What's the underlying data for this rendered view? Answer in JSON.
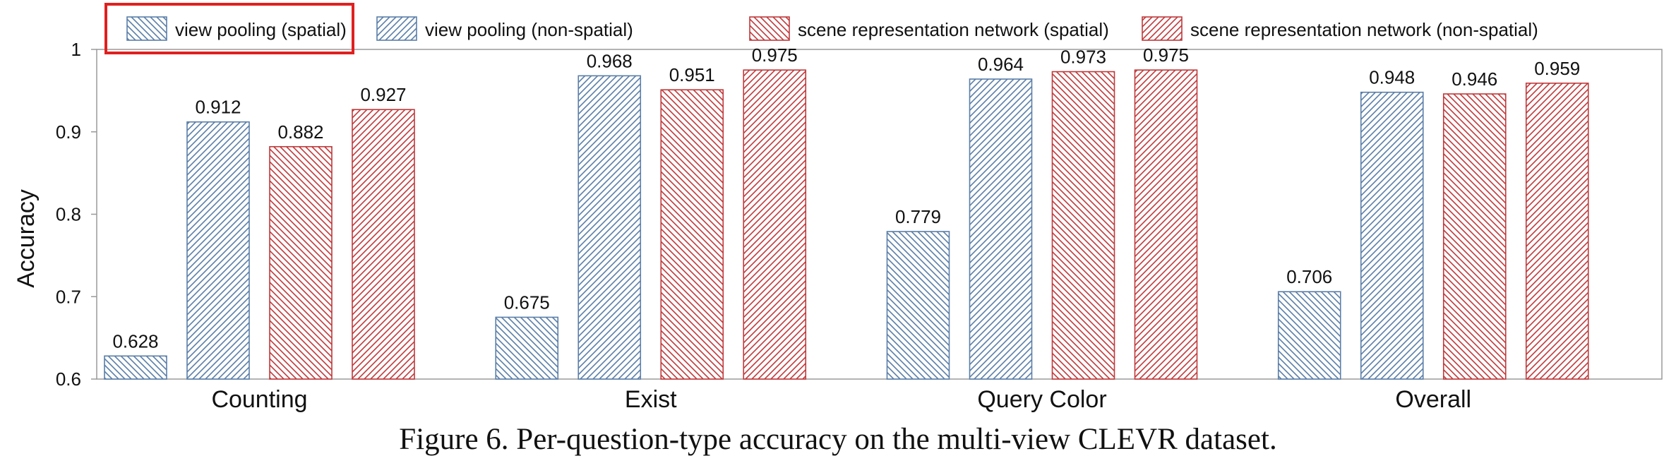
{
  "chart_data": {
    "type": "bar",
    "title": "",
    "xlabel": "",
    "ylabel": "Accuracy",
    "ylim": [
      0.6,
      1.0
    ],
    "yticks": [
      0.6,
      0.7,
      0.8,
      0.9,
      1.0
    ],
    "ytick_labels": [
      "0.6",
      "0.7",
      "0.8",
      "0.9",
      "1"
    ],
    "grid": false,
    "legend_position": "top",
    "categories": [
      "Counting",
      "Exist",
      "Query Color",
      "Overall"
    ],
    "series": [
      {
        "name": "view pooling (spatial)",
        "color": "#5a7ea8",
        "hatch": "backslash",
        "values": [
          0.628,
          0.675,
          0.779,
          0.706
        ]
      },
      {
        "name": "view pooling (non-spatial)",
        "color": "#5a7ea8",
        "hatch": "slash",
        "values": [
          0.912,
          0.968,
          0.964,
          0.948
        ]
      },
      {
        "name": "scene representation network (spatial)",
        "color": "#c0393b",
        "hatch": "backslash",
        "values": [
          0.882,
          0.951,
          0.973,
          0.946
        ]
      },
      {
        "name": "scene representation network (non-spatial)",
        "color": "#c0393b",
        "hatch": "slash",
        "values": [
          0.927,
          0.975,
          0.975,
          0.959
        ]
      }
    ],
    "highlight": {
      "target": "view pooling (spatial)",
      "color": "#e02020"
    }
  },
  "caption": "Figure 6. Per-question-type accuracy on the multi-view CLEVR dataset."
}
